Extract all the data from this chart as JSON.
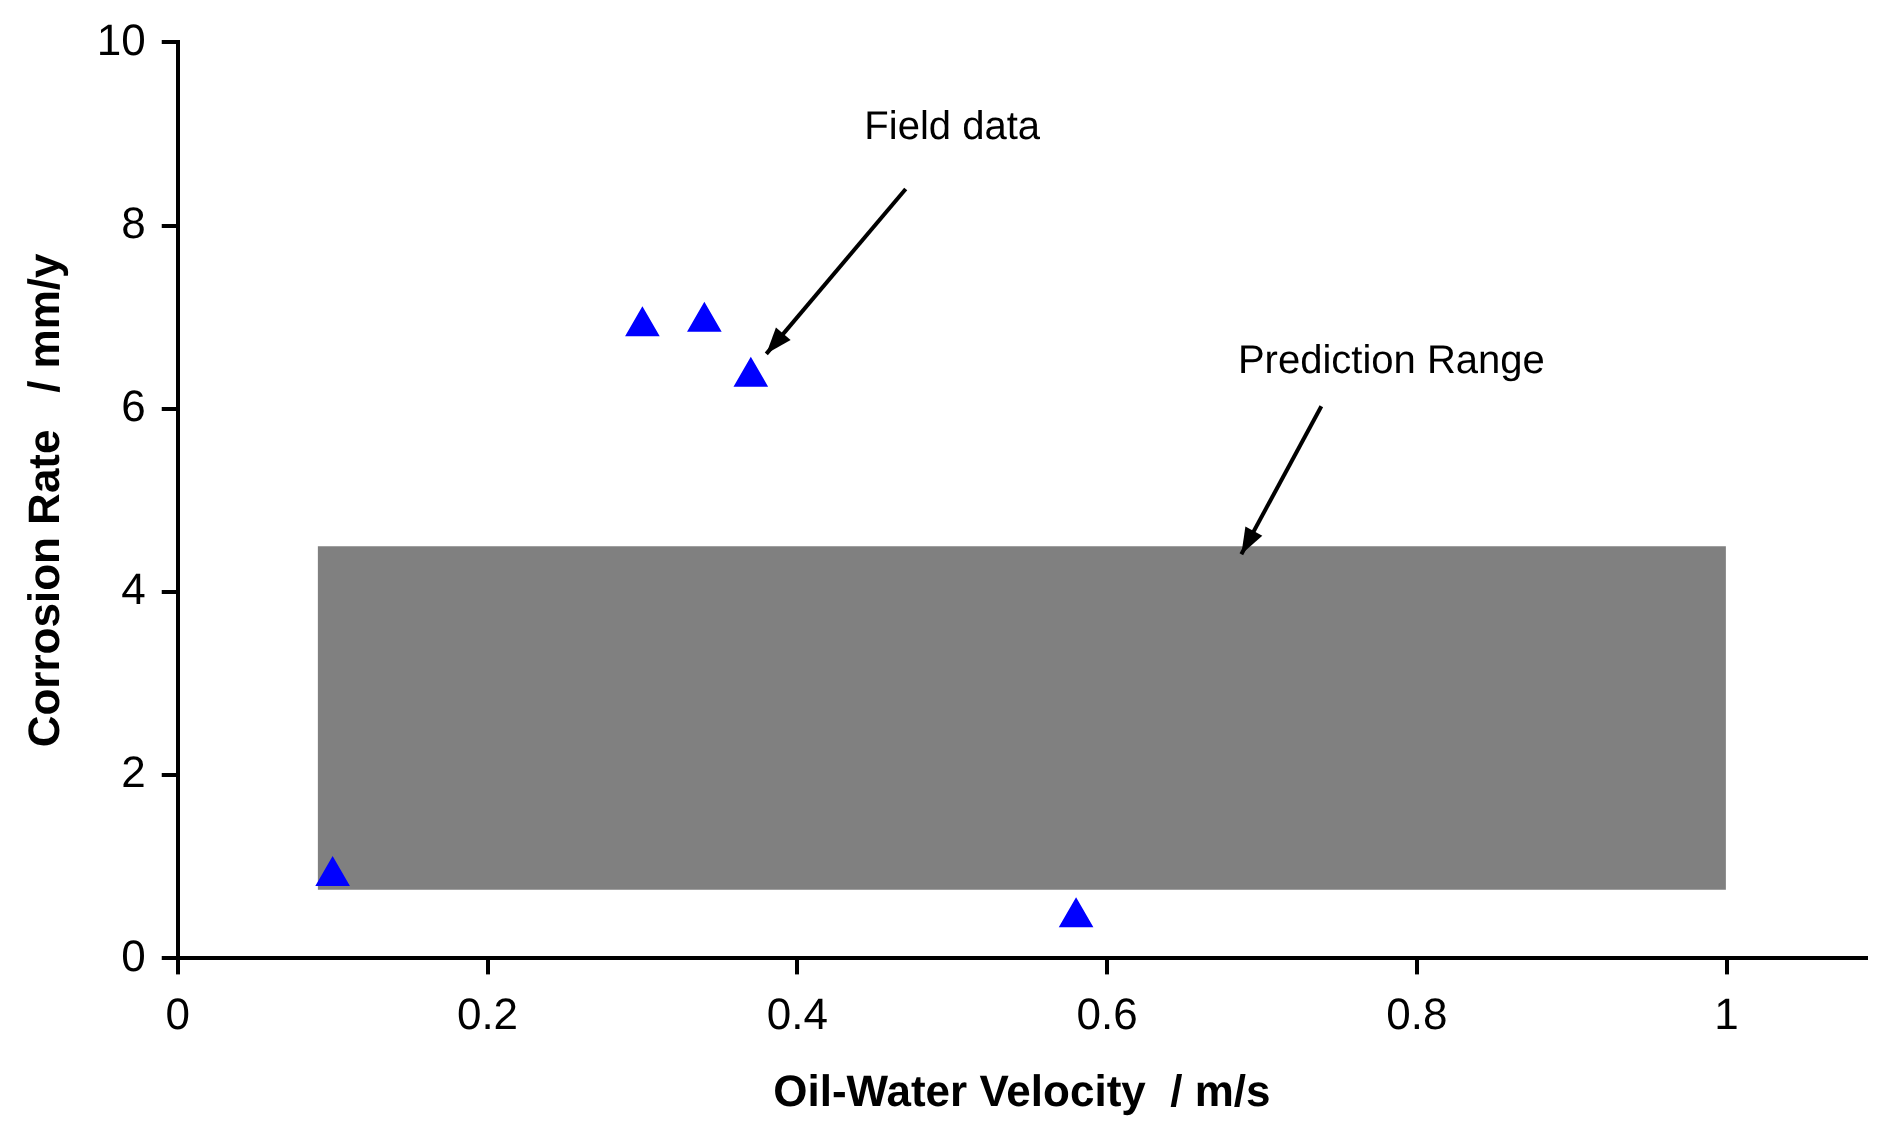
{
  "chart_data": {
    "type": "scatter",
    "xlabel": "Oil-Water Velocity  / m/s",
    "ylabel": "Corrosion Rate   / mm/y",
    "xlim": [
      0,
      1.09
    ],
    "xticks": [
      0,
      0.2,
      0.4,
      0.6,
      0.8,
      1
    ],
    "ylim": [
      0,
      10
    ],
    "yticks": [
      0,
      2,
      4,
      6,
      8,
      10
    ],
    "grid": false,
    "legend": false,
    "series": [
      {
        "color": "#0000ff",
        "marker": "triangle",
        "x": [
          0.1,
          0.3,
          0.34,
          0.37,
          0.58
        ],
        "values": [
          0.9,
          6.9,
          6.95,
          6.35,
          0.45
        ]
      }
    ],
    "bands": [
      {
        "axis": "y",
        "from": 0.75,
        "to": 4.5,
        "label": "Prediction Range",
        "color": "#808080"
      }
    ],
    "annotations": [
      "Field data"
    ]
  }
}
